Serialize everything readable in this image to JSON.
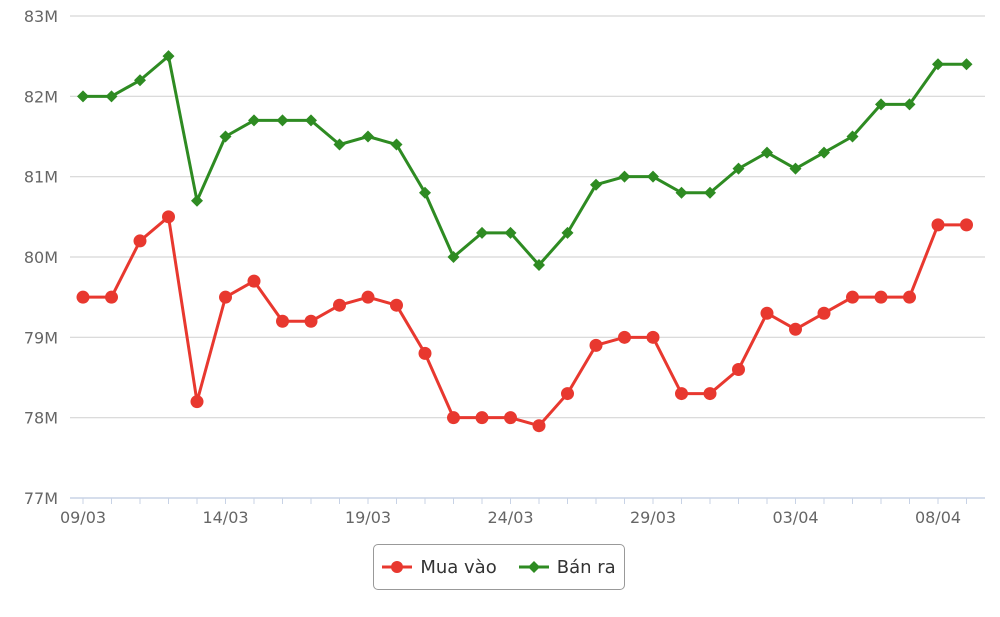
{
  "chart_data": {
    "type": "line",
    "title": "",
    "xlabel": "",
    "ylabel": "",
    "ylim": [
      77,
      83
    ],
    "y_unit_suffix": "M",
    "y_ticks": [
      "77M",
      "78M",
      "79M",
      "80M",
      "81M",
      "82M",
      "83M"
    ],
    "x_tick_labels": [
      "09/03",
      "14/03",
      "19/03",
      "24/03",
      "29/03",
      "03/04",
      "08/04"
    ],
    "x_tick_label_index": [
      0,
      5,
      10,
      15,
      20,
      25,
      30
    ],
    "grid": true,
    "legend_position": "bottom-center",
    "series": [
      {
        "name": "Mua vào",
        "color": "#e8382f",
        "marker": "circle",
        "values": [
          79.5,
          79.5,
          80.2,
          80.5,
          78.2,
          79.5,
          79.7,
          79.2,
          79.2,
          79.4,
          79.5,
          79.4,
          78.8,
          78.0,
          78.0,
          78.0,
          77.9,
          78.3,
          78.9,
          79.0,
          79.0,
          78.3,
          78.3,
          78.6,
          79.3,
          79.1,
          79.3,
          79.5,
          79.5,
          79.5,
          80.4,
          80.4
        ]
      },
      {
        "name": "Bán ra",
        "color": "#2e8b22",
        "marker": "diamond",
        "values": [
          82.0,
          82.0,
          82.2,
          82.5,
          80.7,
          81.5,
          81.7,
          81.7,
          81.7,
          81.4,
          81.5,
          81.4,
          80.8,
          80.0,
          80.3,
          80.3,
          79.9,
          80.3,
          80.9,
          81.0,
          81.0,
          80.8,
          80.8,
          81.1,
          81.3,
          81.1,
          81.3,
          81.5,
          81.9,
          81.9,
          82.4,
          82.4
        ]
      }
    ]
  }
}
